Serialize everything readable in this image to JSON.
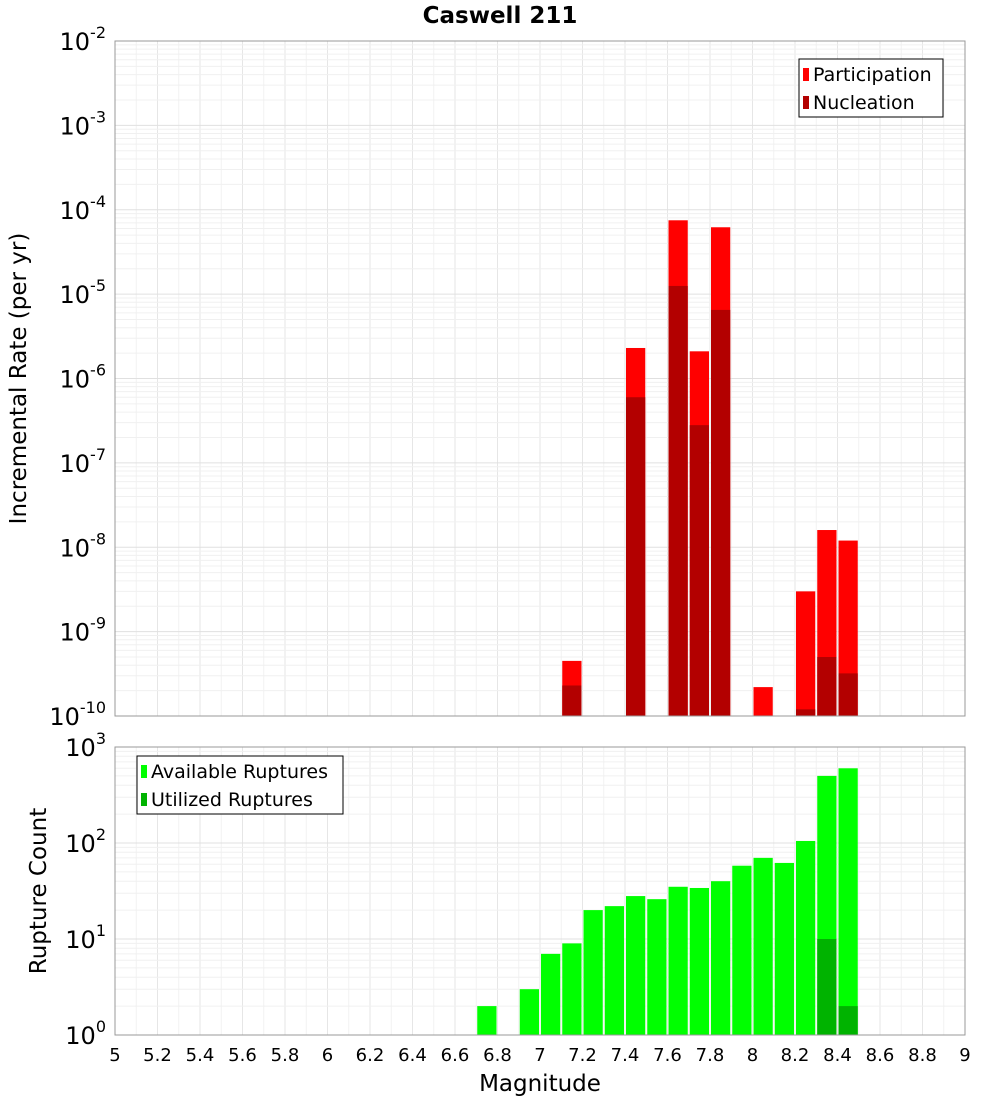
{
  "chart_data": [
    {
      "type": "bar",
      "title": "Caswell 211",
      "xlabel": "",
      "ylabel": "Incremental Rate (per yr)",
      "yscale": "log",
      "xlim": [
        5,
        9
      ],
      "ylim": [
        1e-10,
        0.01
      ],
      "y_ticks": [
        {
          "base": "10",
          "exp": "-10"
        },
        {
          "base": "10",
          "exp": "-9"
        },
        {
          "base": "10",
          "exp": "-8"
        },
        {
          "base": "10",
          "exp": "-7"
        },
        {
          "base": "10",
          "exp": "-6"
        },
        {
          "base": "10",
          "exp": "-5"
        },
        {
          "base": "10",
          "exp": "-4"
        },
        {
          "base": "10",
          "exp": "-3"
        },
        {
          "base": "10",
          "exp": "-2"
        }
      ],
      "legend_position": "top-right",
      "series": [
        {
          "name": "Participation",
          "color": "#ff0000",
          "points": [
            [
              7.15,
              4.5e-10
            ],
            [
              7.45,
              2.3e-06
            ],
            [
              7.65,
              7.5e-05
            ],
            [
              7.75,
              2.1e-06
            ],
            [
              7.85,
              6.2e-05
            ],
            [
              8.05,
              2.2e-10
            ],
            [
              8.25,
              3e-09
            ],
            [
              8.35,
              1.6e-08
            ],
            [
              8.45,
              1.2e-08
            ]
          ]
        },
        {
          "name": "Nucleation",
          "color": "#b30000",
          "points": [
            [
              7.15,
              2.3e-10
            ],
            [
              7.45,
              6e-07
            ],
            [
              7.65,
              1.25e-05
            ],
            [
              7.75,
              2.8e-07
            ],
            [
              7.85,
              6.5e-06
            ],
            [
              8.25,
              1.2e-10
            ],
            [
              8.35,
              5e-10
            ],
            [
              8.45,
              3.2e-10
            ]
          ]
        }
      ]
    },
    {
      "type": "bar",
      "title": "",
      "xlabel": "Magnitude",
      "ylabel": "Rupture Count",
      "yscale": "log",
      "xlim": [
        5,
        9
      ],
      "ylim": [
        1,
        1000
      ],
      "y_ticks": [
        {
          "base": "10",
          "exp": "0"
        },
        {
          "base": "10",
          "exp": "1"
        },
        {
          "base": "10",
          "exp": "2"
        },
        {
          "base": "10",
          "exp": "3"
        }
      ],
      "x_ticks": [
        "5",
        "5.2",
        "5.4",
        "5.6",
        "5.8",
        "6",
        "6.2",
        "6.4",
        "6.6",
        "6.8",
        "7",
        "7.2",
        "7.4",
        "7.6",
        "7.8",
        "8",
        "8.2",
        "8.4",
        "8.6",
        "8.8",
        "9"
      ],
      "legend_position": "top-left",
      "series": [
        {
          "name": "Available Ruptures",
          "color": "#00ff00",
          "points": [
            [
              6.75,
              2
            ],
            [
              6.85,
              1
            ],
            [
              6.95,
              3
            ],
            [
              7.05,
              7
            ],
            [
              7.15,
              9
            ],
            [
              7.25,
              20
            ],
            [
              7.35,
              22
            ],
            [
              7.45,
              28
            ],
            [
              7.55,
              26
            ],
            [
              7.65,
              35
            ],
            [
              7.75,
              34
            ],
            [
              7.85,
              40
            ],
            [
              7.95,
              58
            ],
            [
              8.05,
              70
            ],
            [
              8.15,
              62
            ],
            [
              8.25,
              105
            ],
            [
              8.35,
              500
            ],
            [
              8.45,
              600
            ]
          ]
        },
        {
          "name": "Utilized Ruptures",
          "color": "#00b300",
          "points": [
            [
              7.15,
              1
            ],
            [
              7.45,
              1
            ],
            [
              7.65,
              1
            ],
            [
              7.75,
              1
            ],
            [
              7.85,
              1
            ],
            [
              8.05,
              1
            ],
            [
              8.25,
              1
            ],
            [
              8.35,
              10
            ],
            [
              8.45,
              2
            ]
          ]
        }
      ]
    }
  ]
}
